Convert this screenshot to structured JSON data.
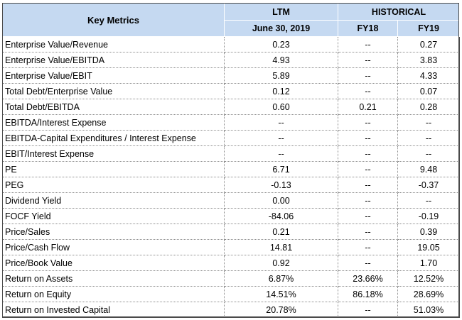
{
  "header": {
    "key_metrics": "Key Metrics",
    "ltm": "LTM",
    "historical": "HISTORICAL",
    "ltm_date": "June 30, 2019",
    "fy18": "FY18",
    "fy19": "FY19"
  },
  "rows": [
    {
      "label": "Enterprise Value/Revenue",
      "ltm": "0.23",
      "fy18": "--",
      "fy19": "0.27"
    },
    {
      "label": "Enterprise Value/EBITDA",
      "ltm": "4.93",
      "fy18": "--",
      "fy19": "3.83"
    },
    {
      "label": "Enterprise Value/EBIT",
      "ltm": "5.89",
      "fy18": "--",
      "fy19": "4.33"
    },
    {
      "label": "Total Debt/Enterprise Value",
      "ltm": "0.12",
      "fy18": "--",
      "fy19": "0.07"
    },
    {
      "label": "Total Debt/EBITDA",
      "ltm": "0.60",
      "fy18": "0.21",
      "fy19": "0.28"
    },
    {
      "label": "EBITDA/Interest Expense",
      "ltm": "--",
      "fy18": "--",
      "fy19": "--"
    },
    {
      "label": "EBITDA-Capital Expenditures / Interest Expense",
      "ltm": "--",
      "fy18": "--",
      "fy19": "--"
    },
    {
      "label": "EBIT/Interest Expense",
      "ltm": "--",
      "fy18": "--",
      "fy19": "--"
    },
    {
      "label": "PE",
      "ltm": "6.71",
      "fy18": "--",
      "fy19": "9.48"
    },
    {
      "label": "PEG",
      "ltm": "-0.13",
      "fy18": "--",
      "fy19": "-0.37"
    },
    {
      "label": "Dividend Yield",
      "ltm": "0.00",
      "fy18": "--",
      "fy19": "--"
    },
    {
      "label": "FOCF Yield",
      "ltm": "-84.06",
      "fy18": "--",
      "fy19": "-0.19"
    },
    {
      "label": "Price/Sales",
      "ltm": "0.21",
      "fy18": "--",
      "fy19": "0.39"
    },
    {
      "label": "Price/Cash Flow",
      "ltm": "14.81",
      "fy18": "--",
      "fy19": "19.05"
    },
    {
      "label": "Price/Book Value",
      "ltm": "0.92",
      "fy18": "--",
      "fy19": "1.70"
    },
    {
      "label": "Return on Assets",
      "ltm": "6.87%",
      "fy18": "23.66%",
      "fy19": "12.52%"
    },
    {
      "label": "Return on Equity",
      "ltm": "14.51%",
      "fy18": "86.18%",
      "fy19": "28.69%"
    },
    {
      "label": "Return on Invested Capital",
      "ltm": "20.78%",
      "fy18": "--",
      "fy19": "51.03%"
    }
  ]
}
